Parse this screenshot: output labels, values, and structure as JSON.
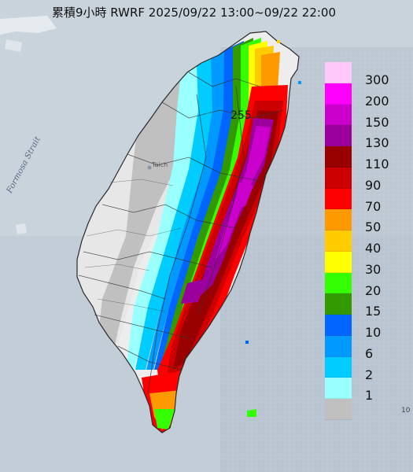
{
  "title": "累積9小時 RWRF 2025/09/22 13:00~09/22 22:00",
  "sea_label": "Formosa Strait",
  "city_label": "Taich",
  "max_label": "255",
  "edge_tick": "10",
  "legend": [
    {
      "label": "300",
      "color": "#ffc8fa"
    },
    {
      "label": "200",
      "color": "#ff00ff"
    },
    {
      "label": "150",
      "color": "#cc00cc"
    },
    {
      "label": "130",
      "color": "#9c009c"
    },
    {
      "label": "110",
      "color": "#990000"
    },
    {
      "label": "90",
      "color": "#cc0000"
    },
    {
      "label": "70",
      "color": "#ff0000"
    },
    {
      "label": "50",
      "color": "#ff9900"
    },
    {
      "label": "40",
      "color": "#ffcc00"
    },
    {
      "label": "30",
      "color": "#ffff00"
    },
    {
      "label": "20",
      "color": "#33ff00"
    },
    {
      "label": "15",
      "color": "#339900"
    },
    {
      "label": "10",
      "color": "#0066ff"
    },
    {
      "label": "6",
      "color": "#0099ff"
    },
    {
      "label": "2",
      "color": "#00ccff"
    },
    {
      "label": "1",
      "color": "#99ffff"
    },
    {
      "label": "",
      "color": "#c0c0c0"
    }
  ]
}
